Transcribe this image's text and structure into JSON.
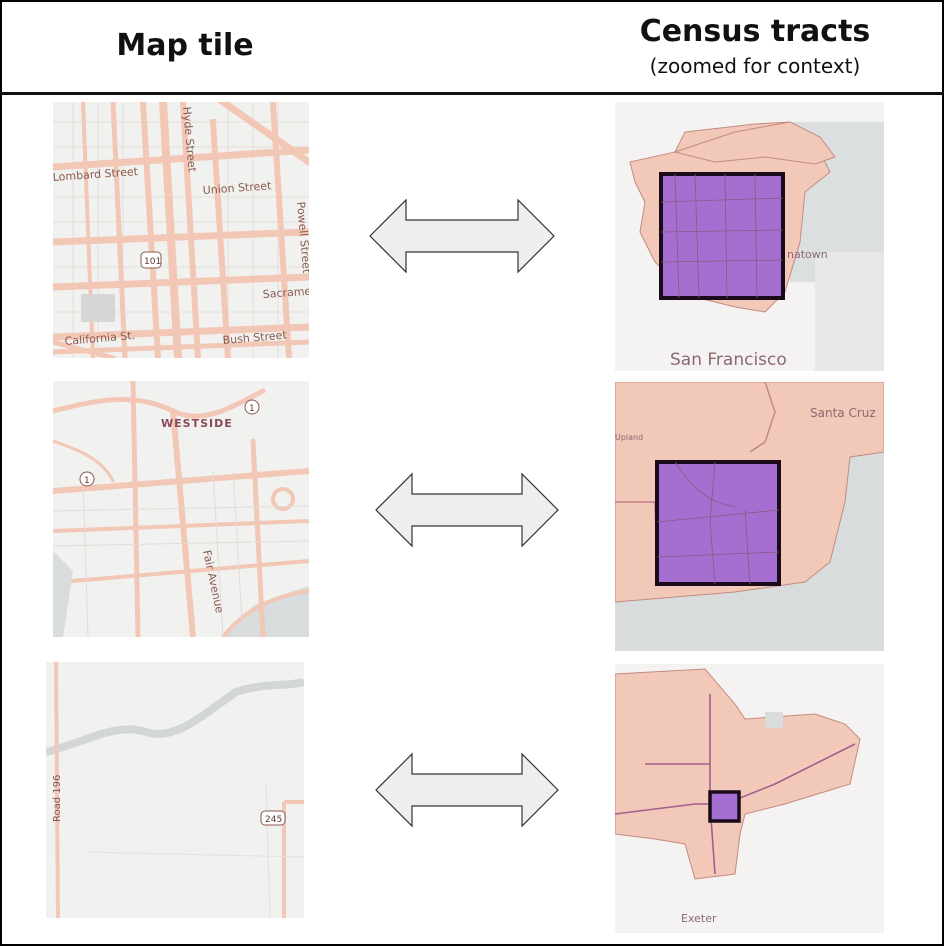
{
  "header": {
    "left_title": "Map tile",
    "right_title": "Census tracts",
    "right_subtitle": "(zoomed for context)"
  },
  "rows": [
    {
      "map_tile": {
        "labels": [
          "Lombard Street",
          "Union Street",
          "Powell Street",
          "Sacrame",
          "California St.",
          "Bush Street",
          "Hyde Street",
          "101"
        ]
      },
      "tract": {
        "labels": [
          "San Francisco",
          "natown"
        ]
      }
    },
    {
      "map_tile": {
        "labels": [
          "WESTSIDE",
          "Fair Avenue",
          "1",
          "1"
        ]
      },
      "tract": {
        "labels": [
          "Santa Cruz",
          "Upland"
        ]
      }
    },
    {
      "map_tile": {
        "labels": [
          "Road 196",
          "245"
        ]
      },
      "tract": {
        "labels": [
          "Exeter"
        ]
      }
    }
  ],
  "colors": {
    "road": "#f3c7b6",
    "tract_fill": "#f2c8b8",
    "highlight": "#a56fd2",
    "arrow_fill": "#eeeeee",
    "water": "#d9dcdc",
    "label": "#8a5a4e"
  }
}
